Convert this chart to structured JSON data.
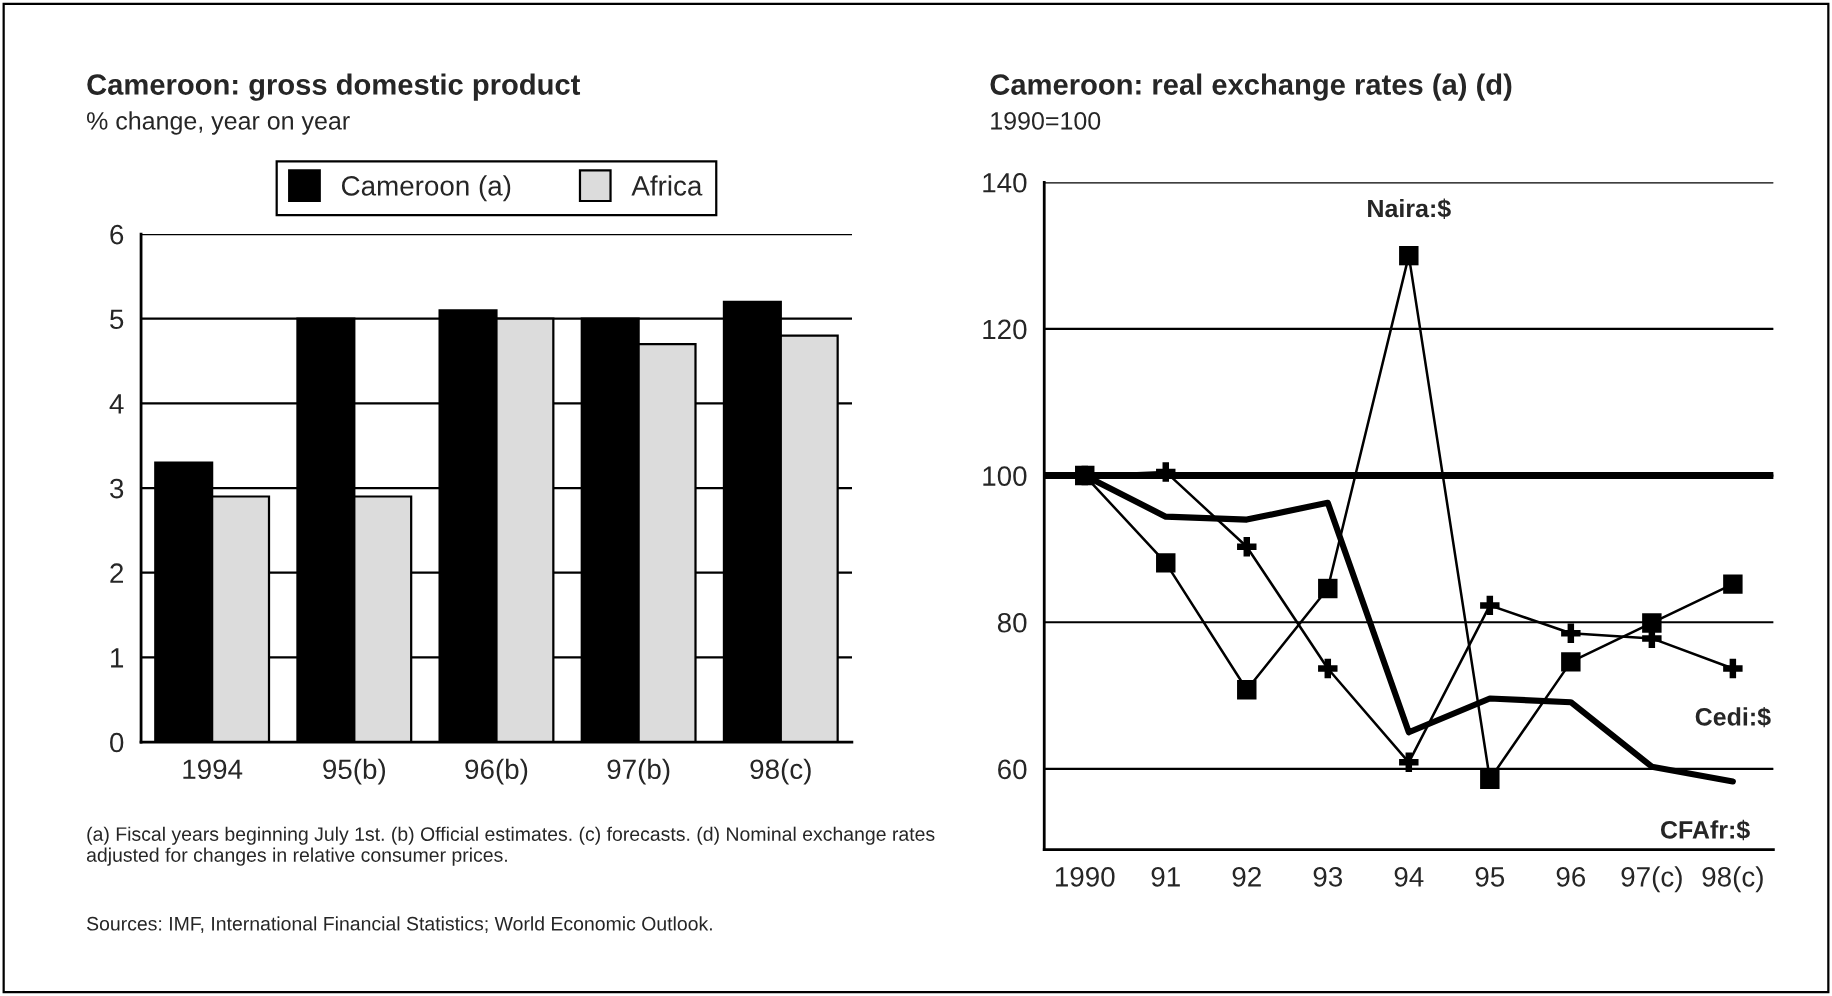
{
  "chart_data": [
    {
      "type": "bar",
      "title": "Cameroon: gross domestic product",
      "subtitle": "% change, year on year",
      "categories": [
        "1994",
        "95(b)",
        "96(b)",
        "97(b)",
        "98(c)"
      ],
      "series": [
        {
          "name": "Cameroon (a)",
          "color": "#000000",
          "values": [
            3.3,
            5.0,
            5.1,
            5.0,
            5.2
          ]
        },
        {
          "name": "Africa",
          "color": "#dcdcdc",
          "values": [
            2.9,
            2.9,
            5.0,
            4.7,
            4.8
          ]
        }
      ],
      "ylim": [
        0,
        6
      ],
      "yticks": [
        0,
        1,
        2,
        3,
        4,
        5,
        6
      ],
      "grid": "y",
      "legend": "top",
      "annotations": [
        "(a) Fiscal years beginning July 1st. (b) Official estimates. (c) forecasts. (d) Nominal exchange rates adjusted for changes in relative consumer prices.",
        "Sources: IMF, International Financial Statistics; World Economic Outlook."
      ]
    },
    {
      "type": "line",
      "title": "Cameroon: real exchange rates (a) (d)",
      "subtitle": "1990=100",
      "categories": [
        "1990",
        "91",
        "92",
        "93",
        "94",
        "95",
        "96",
        "97(c)",
        "98(c)"
      ],
      "series": [
        {
          "name": "CFAfr:$",
          "color": "#000000",
          "marker": "none",
          "values": [
            100,
            94.4,
            94,
            96.3,
            65,
            69.6,
            69.1,
            60.3,
            58.3
          ]
        },
        {
          "name": "Naira:$",
          "color": "#000000",
          "marker": "square",
          "values": [
            100,
            88.1,
            70.8,
            84.6,
            130,
            58.6,
            74.6,
            79.9,
            85.2
          ]
        },
        {
          "name": "Cedi:$",
          "color": "#000000",
          "marker": "cross",
          "values": [
            100,
            100.5,
            90.3,
            73.7,
            60.9,
            82.3,
            78.5,
            77.8,
            73.7
          ]
        }
      ],
      "ylim": [
        49,
        140
      ],
      "yticks": [
        60,
        80,
        100,
        120,
        140
      ],
      "grid": "y",
      "legend": false,
      "ref_lines": [
        {
          "axis": "y",
          "value": 100,
          "color": "#000000"
        }
      ]
    }
  ]
}
